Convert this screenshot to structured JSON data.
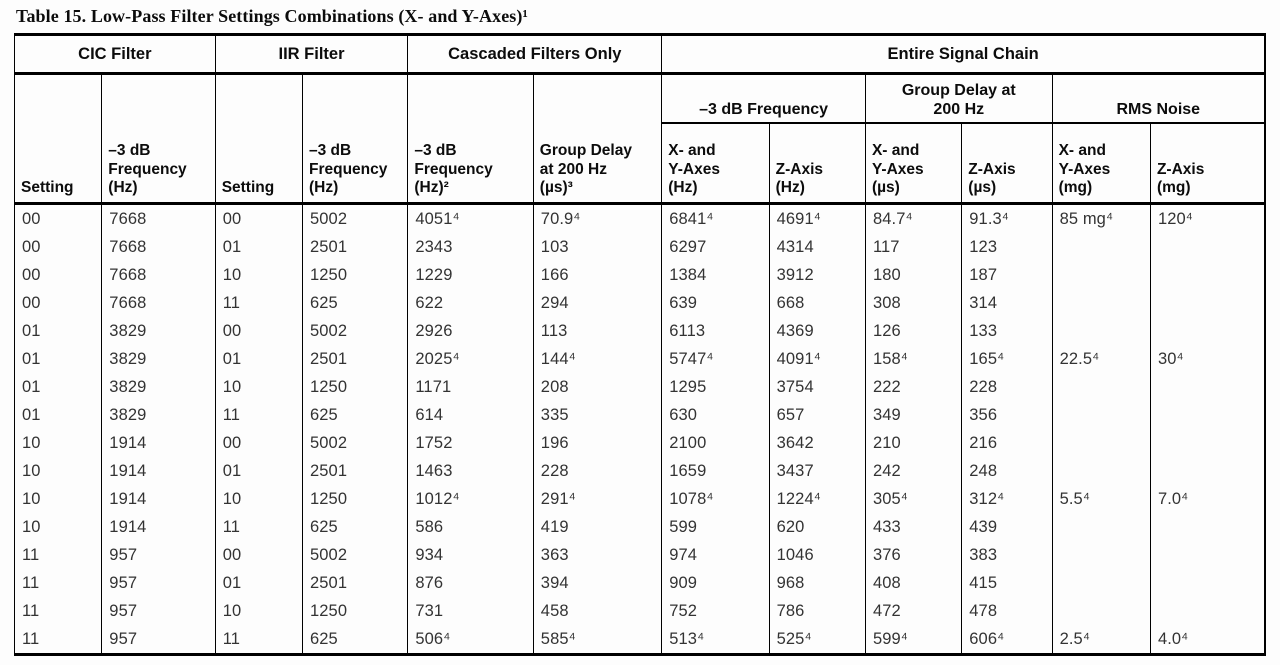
{
  "page": {
    "title": "Table 15. Low-Pass Filter Settings Combinations (X- and Y-Axes)¹"
  },
  "table": {
    "groups": [
      {
        "label": "CIC Filter"
      },
      {
        "label": "IIR Filter"
      },
      {
        "label": "Cascaded Filters Only"
      },
      {
        "label": "Entire Signal Chain"
      }
    ],
    "subgroups": [
      {
        "label": "–3 dB Frequency"
      },
      {
        "label": "Group Delay at\n200 Hz"
      },
      {
        "label": "RMS Noise"
      }
    ],
    "columns": [
      {
        "label": "Setting"
      },
      {
        "label": "–3 dB\nFrequency\n(Hz)"
      },
      {
        "label": "Setting"
      },
      {
        "label": "–3 dB\nFrequency\n(Hz)"
      },
      {
        "label": "–3 dB\nFrequency\n(Hz)²"
      },
      {
        "label": "Group Delay\nat 200 Hz\n(µs)³"
      },
      {
        "label": "X- and\nY-Axes\n(Hz)"
      },
      {
        "label": "Z-Axis\n(Hz)"
      },
      {
        "label": "X- and\nY-Axes\n(µs)"
      },
      {
        "label": "Z-Axis\n(µs)"
      },
      {
        "label": "X- and\nY-Axes\n(mg)"
      },
      {
        "label": "Z-Axis\n(mg)"
      }
    ],
    "rows": [
      [
        "00",
        "7668",
        "00",
        "5002",
        "4051⁴",
        "70.9⁴",
        "6841⁴",
        "4691⁴",
        "84.7⁴",
        "91.3⁴",
        "85 mg⁴",
        "120⁴"
      ],
      [
        "00",
        "7668",
        "01",
        "2501",
        "2343",
        "103",
        "6297",
        "4314",
        "117",
        "123",
        "",
        ""
      ],
      [
        "00",
        "7668",
        "10",
        "1250",
        "1229",
        "166",
        "1384",
        "3912",
        "180",
        "187",
        "",
        ""
      ],
      [
        "00",
        "7668",
        "11",
        "625",
        "622",
        "294",
        "639",
        "668",
        "308",
        "314",
        "",
        ""
      ],
      [
        "01",
        "3829",
        "00",
        "5002",
        "2926",
        "113",
        "6113",
        "4369",
        "126",
        "133",
        "",
        ""
      ],
      [
        "01",
        "3829",
        "01",
        "2501",
        "2025⁴",
        "144⁴",
        "5747⁴",
        "4091⁴",
        "158⁴",
        "165⁴",
        "22.5⁴",
        "30⁴"
      ],
      [
        "01",
        "3829",
        "10",
        "1250",
        "1171",
        "208",
        "1295",
        "3754",
        "222",
        "228",
        "",
        ""
      ],
      [
        "01",
        "3829",
        "11",
        "625",
        "614",
        "335",
        "630",
        "657",
        "349",
        "356",
        "",
        ""
      ],
      [
        "10",
        "1914",
        "00",
        "5002",
        "1752",
        "196",
        "2100",
        "3642",
        "210",
        "216",
        "",
        ""
      ],
      [
        "10",
        "1914",
        "01",
        "2501",
        "1463",
        "228",
        "1659",
        "3437",
        "242",
        "248",
        "",
        ""
      ],
      [
        "10",
        "1914",
        "10",
        "1250",
        "1012⁴",
        "291⁴",
        "1078⁴",
        "1224⁴",
        "305⁴",
        "312⁴",
        "5.5⁴",
        "7.0⁴"
      ],
      [
        "10",
        "1914",
        "11",
        "625",
        "586",
        "419",
        "599",
        "620",
        "433",
        "439",
        "",
        ""
      ],
      [
        "11",
        "957",
        "00",
        "5002",
        "934",
        "363",
        "974",
        "1046",
        "376",
        "383",
        "",
        ""
      ],
      [
        "11",
        "957",
        "01",
        "2501",
        "876",
        "394",
        "909",
        "968",
        "408",
        "415",
        "",
        ""
      ],
      [
        "11",
        "957",
        "10",
        "1250",
        "731",
        "458",
        "752",
        "786",
        "472",
        "478",
        "",
        ""
      ],
      [
        "11",
        "957",
        "11",
        "625",
        "506⁴",
        "585⁴",
        "513⁴",
        "525⁴",
        "599⁴",
        "606⁴",
        "2.5⁴",
        "4.0⁴"
      ]
    ]
  }
}
